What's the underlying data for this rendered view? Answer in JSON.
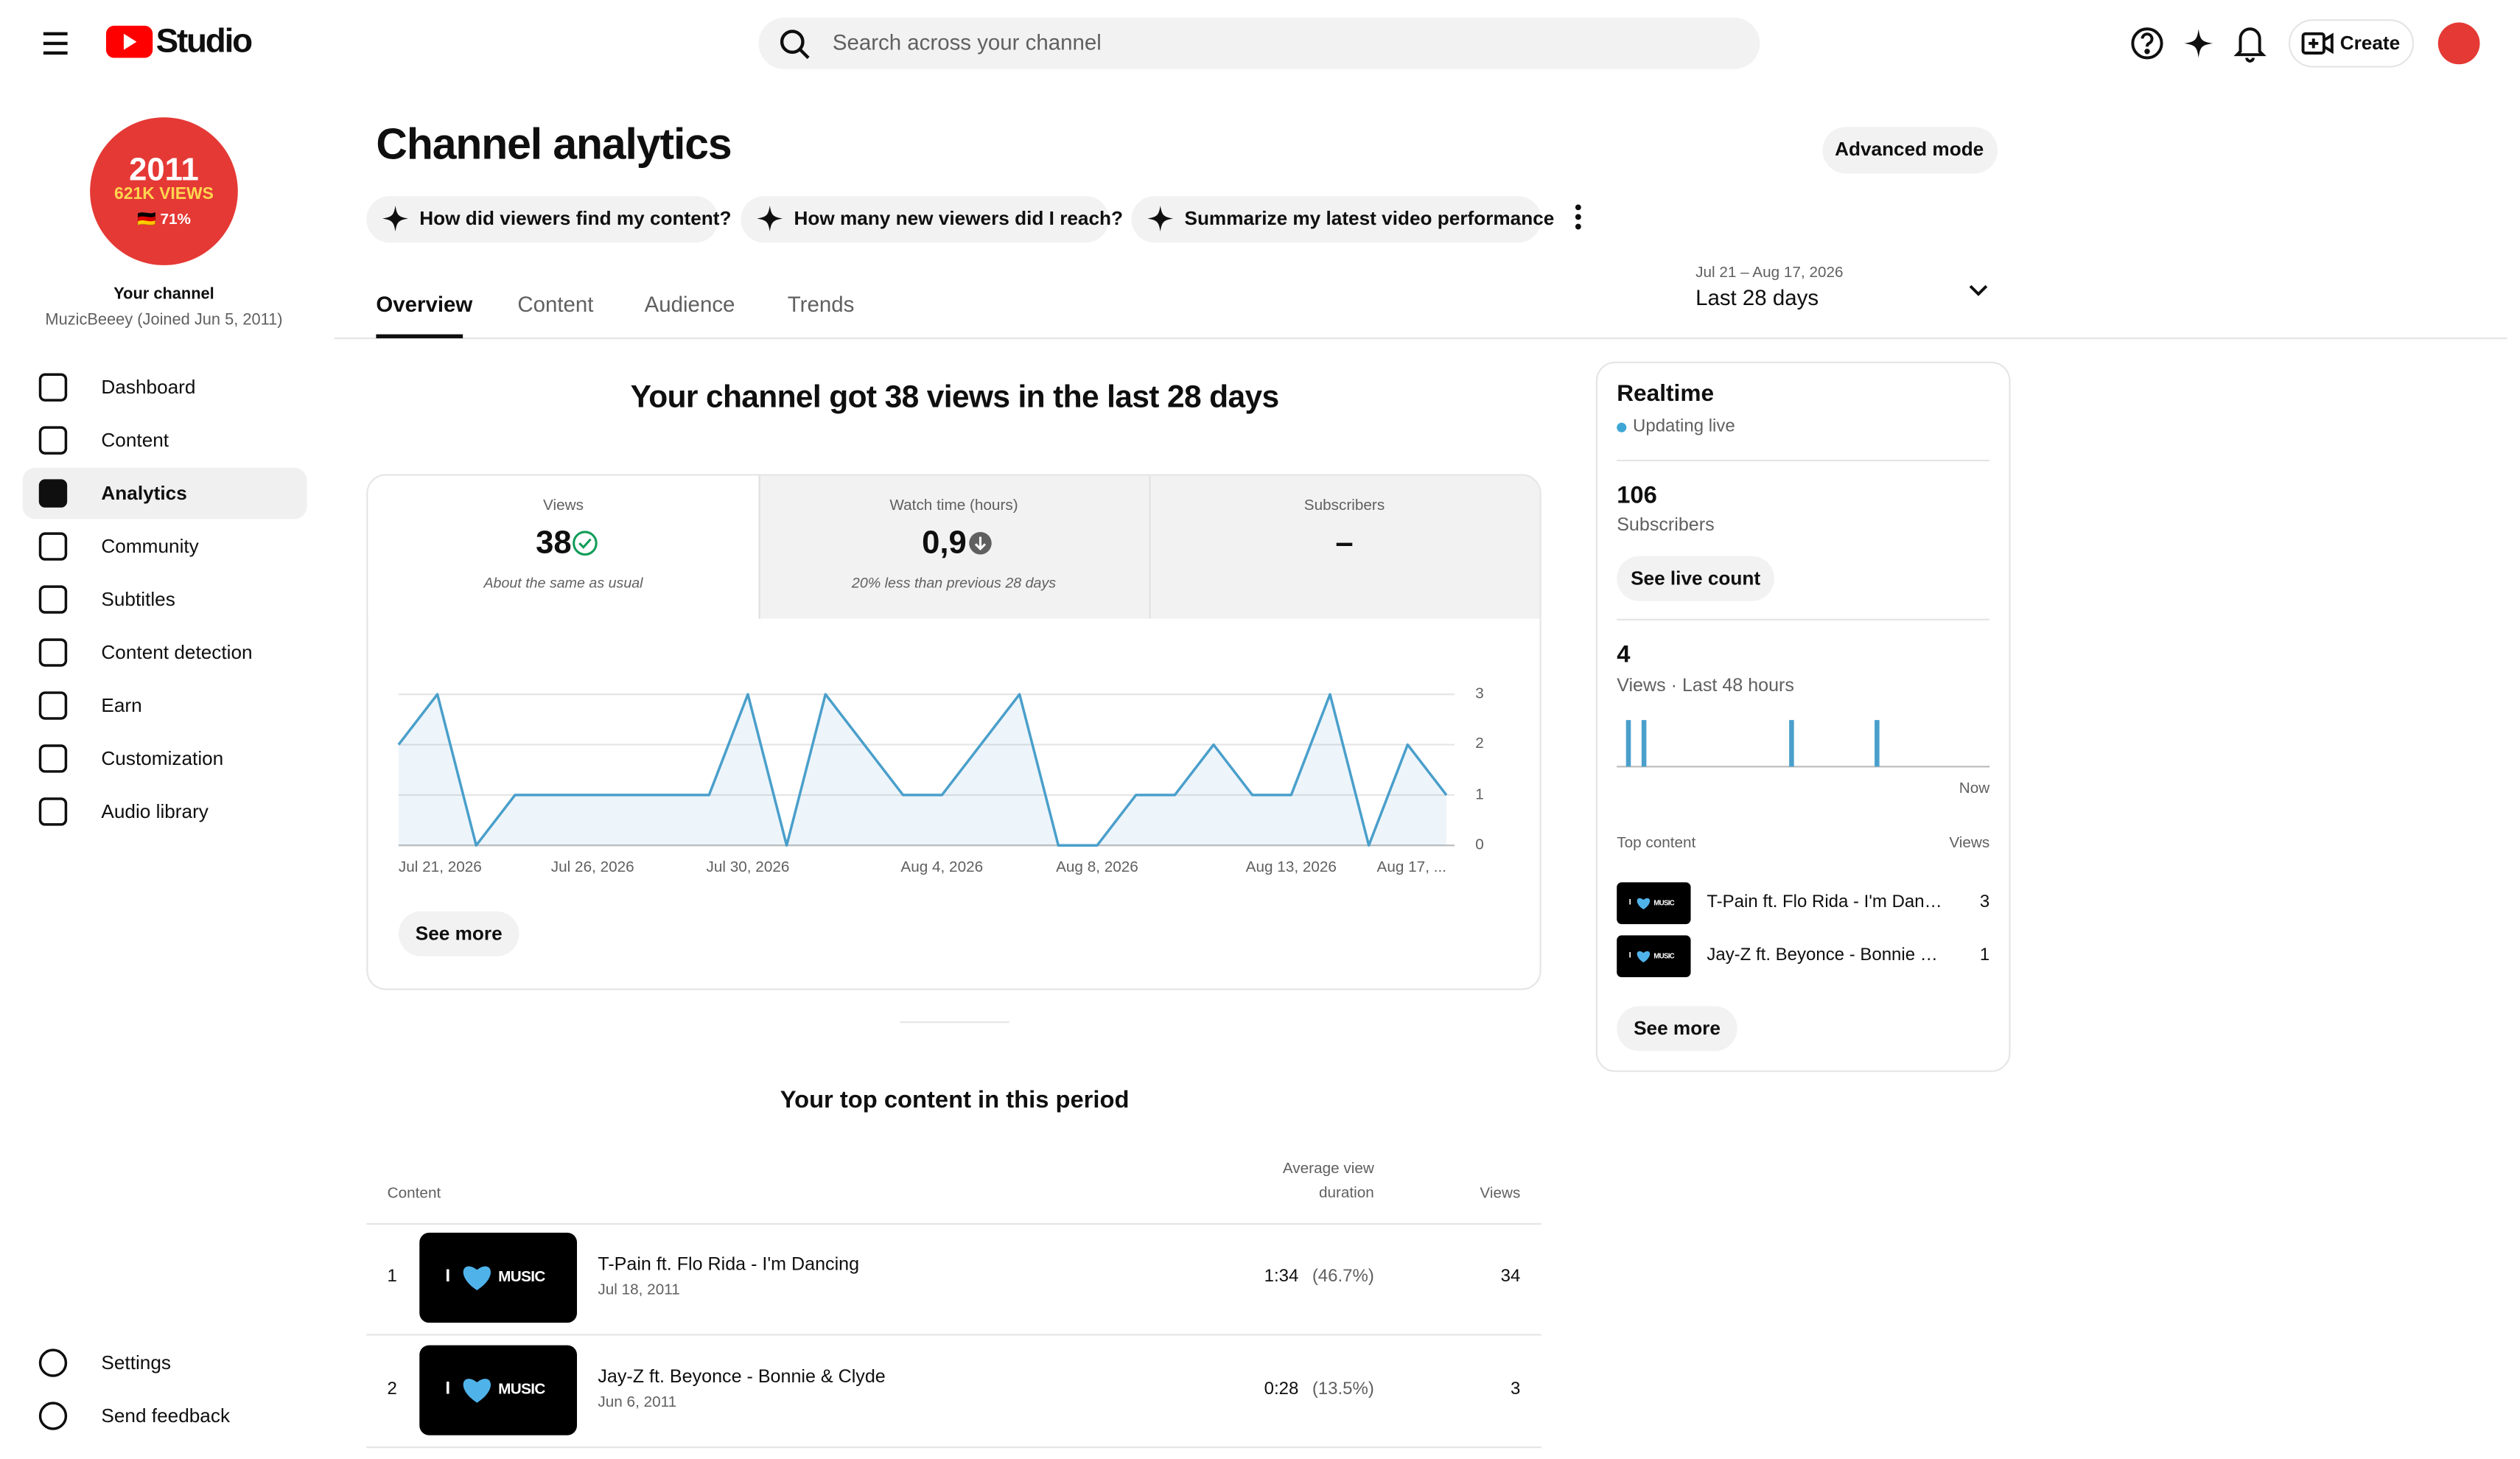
{
  "header": {
    "logo": "Studio",
    "search_placeholder": "Search across your channel",
    "create": "Create"
  },
  "sidebar": {
    "avatar": {
      "year": "2011",
      "views": "621K VIEWS",
      "share": "🇩🇪 71%"
    },
    "channel_label": "Your channel",
    "channel_name": "MuzicBeeey (Joined Jun 5, 2011)",
    "nav": [
      "Dashboard",
      "Content",
      "Analytics",
      "Community",
      "Subtitles",
      "Content detection",
      "Earn",
      "Customization",
      "Audio library"
    ],
    "selected_index": 2,
    "footer_nav": [
      "Settings",
      "Send feedback"
    ]
  },
  "page": {
    "title": "Channel analytics",
    "advanced_mode": "Advanced mode",
    "chips": [
      "How did viewers find my content?",
      "How many new viewers did I reach?",
      "Summarize my latest video performance"
    ],
    "tabs": [
      "Overview",
      "Content",
      "Audience",
      "Trends"
    ],
    "date_range": {
      "dates": "Jul 21 – Aug 17, 2026",
      "label": "Last 28 days"
    }
  },
  "overview": {
    "headline": "Your channel got 38 views in the last 28 days",
    "metrics": [
      {
        "label": "Views",
        "value": "38",
        "note": "About the same as usual"
      },
      {
        "label": "Watch time (hours)",
        "value": "0,9",
        "note": "20% less than previous 28 days"
      },
      {
        "label": "Subscribers",
        "value": "–"
      }
    ],
    "chart": {
      "type": "line",
      "categories": [
        "Jul 21, 2026",
        null,
        null,
        null,
        null,
        "Jul 26, 2026",
        null,
        null,
        null,
        "Jul 30, 2026",
        null,
        null,
        null,
        null,
        "Aug 4, 2026",
        null,
        null,
        null,
        "Aug 8, 2026",
        null,
        null,
        null,
        null,
        "Aug 13, 2026",
        null,
        null,
        null,
        "Aug 17, ..."
      ],
      "values": [
        2,
        3,
        0,
        1,
        1,
        1,
        1,
        1,
        1,
        3,
        0,
        3,
        2,
        1,
        1,
        2,
        3,
        0,
        0,
        1,
        1,
        2,
        1,
        1,
        3,
        0,
        2,
        1
      ],
      "color": "#4a9fcb",
      "ylim": [
        0,
        3
      ],
      "yticks": [
        0,
        1,
        2,
        3
      ],
      "grid": true
    },
    "see_more": "See more"
  },
  "thumbnail": {
    "lead": "I",
    "word": "MUSIC"
  },
  "top_content": {
    "title": "Your top content in this period",
    "columns": {
      "content": "Content",
      "duration": "Average view duration",
      "views": "Views"
    },
    "rows": [
      {
        "rank": "1",
        "title": "T-Pain ft. Flo Rida - I'm Dancing",
        "date": "Jul 18, 2011",
        "duration": "1:34",
        "percent": "(46.7%)",
        "views": "34"
      },
      {
        "rank": "2",
        "title": "Jay-Z ft. Beyonce - Bonnie & Clyde",
        "date": "Jun 6, 2011",
        "duration": "0:28",
        "percent": "(13.5%)",
        "views": "3"
      }
    ]
  },
  "realtime": {
    "title": "Realtime",
    "status": "Updating live",
    "subscribers": "106",
    "subscribers_label": "Subscribers",
    "see_live_count": "See live count",
    "views": "4",
    "views_label": "Views · Last 48 hours",
    "chart": {
      "type": "bar",
      "values": [
        0,
        1,
        0,
        1,
        0,
        0,
        0,
        0,
        0,
        0,
        0,
        0,
        0,
        0,
        0,
        0,
        0,
        0,
        0,
        0,
        0,
        0,
        1,
        0,
        0,
        0,
        0,
        0,
        0,
        0,
        0,
        0,
        0,
        1,
        0,
        0,
        0,
        0,
        0,
        0,
        0,
        0,
        0,
        0,
        0,
        0,
        0,
        0
      ],
      "ylim": [
        0,
        1
      ],
      "color": "#4a9fcb"
    },
    "now": "Now",
    "top_content_label": "Top content",
    "views_column": "Views",
    "items": [
      {
        "title": "T-Pain ft. Flo Rida - I'm Dan…",
        "views": "3"
      },
      {
        "title": "Jay-Z ft. Beyonce - Bonnie …",
        "views": "1"
      }
    ],
    "see_more": "See more"
  }
}
